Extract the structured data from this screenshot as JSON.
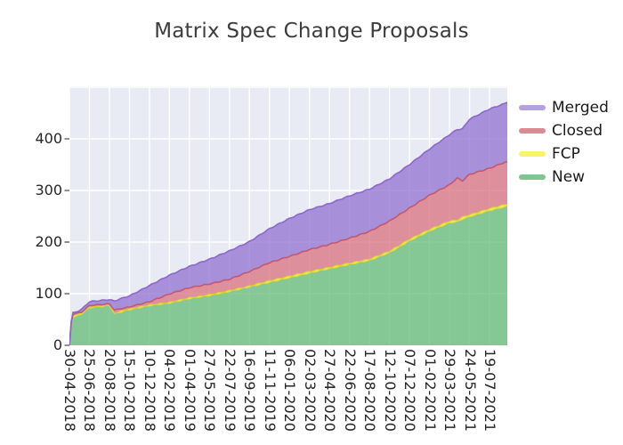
{
  "title": "Matrix Spec Change Proposals",
  "legend": {
    "entries": [
      {
        "label": "Merged",
        "color": "#b5a1e2"
      },
      {
        "label": "Closed",
        "color": "#dd8a93"
      },
      {
        "label": "FCP",
        "color": "#f8f56b"
      },
      {
        "label": "New",
        "color": "#84c493"
      }
    ]
  },
  "chart_data": {
    "type": "area",
    "stacked": true,
    "title": "Matrix Spec Change Proposals",
    "xlabel": "",
    "ylabel": "",
    "ylim": [
      0,
      502
    ],
    "yticks": [
      0,
      100,
      200,
      300,
      400
    ],
    "grid": true,
    "plot_bg": "#e8ebf4",
    "grid_color": "#ffffff",
    "tick_color": "#444444",
    "legend_position": "right-top",
    "x_tick_interval_days": 56,
    "x_tick_labels": [
      "30-04-2018",
      "25-06-2018",
      "20-08-2018",
      "15-10-2018",
      "10-12-2018",
      "04-02-2019",
      "01-04-2019",
      "27-05-2019",
      "22-07-2019",
      "16-09-2019",
      "11-11-2019",
      "06-01-2020",
      "02-03-2020",
      "27-04-2020",
      "22-06-2020",
      "17-08-2020",
      "12-10-2020",
      "07-12-2020",
      "01-02-2021",
      "29-03-2021",
      "24-05-2021",
      "19-07-2021"
    ],
    "sample_days": [
      0,
      5,
      10,
      34,
      56,
      112,
      126,
      140,
      168,
      224,
      280,
      336,
      392,
      448,
      504,
      560,
      616,
      672,
      728,
      784,
      840,
      896,
      952,
      1008,
      1064,
      1085,
      1100,
      1120,
      1176,
      1226
    ],
    "series": [
      {
        "name": "New",
        "fill": "#64bb75",
        "edge": "#e2d83c",
        "stack_order": 0,
        "values": [
          0,
          40,
          55,
          60,
          72,
          76,
          60,
          63,
          68,
          76,
          81,
          90,
          96,
          104,
          113,
          122,
          131,
          140,
          149,
          157,
          165,
          180,
          203,
          222,
          238,
          240,
          245,
          250,
          262,
          270
        ]
      },
      {
        "name": "FCP",
        "fill": "#f3e819",
        "edge": "#d9ce32",
        "stack_order": 1,
        "values": [
          0,
          1,
          2,
          2,
          2,
          2,
          3,
          3,
          3,
          3,
          3,
          3,
          3,
          3,
          3,
          4,
          4,
          4,
          3,
          3,
          3,
          3,
          3,
          3,
          3,
          3,
          3,
          3,
          3,
          3
        ]
      },
      {
        "name": "Closed",
        "fill": "#d9707d",
        "edge": "#c2556b",
        "stack_order": 2,
        "values": [
          0,
          2,
          2,
          3,
          4,
          3,
          6,
          5,
          4,
          6,
          16,
          19,
          20,
          21,
          27,
          34,
          37,
          41,
          43,
          47,
          52,
          57,
          59,
          65,
          69,
          80,
          70,
          77,
          77,
          83
        ]
      },
      {
        "name": "Merged",
        "fill": "#9170d0",
        "edge": "#8a63c9",
        "stack_order": 3,
        "values": [
          0,
          3,
          4,
          5,
          6,
          7,
          16,
          18,
          20,
          30,
          35,
          40,
          47,
          54,
          57,
          65,
          73,
          77,
          79,
          82,
          82,
          82,
          85,
          90,
          98,
          95,
          102,
          108,
          116,
          115
        ]
      }
    ],
    "fill_opacity": 0.75
  }
}
